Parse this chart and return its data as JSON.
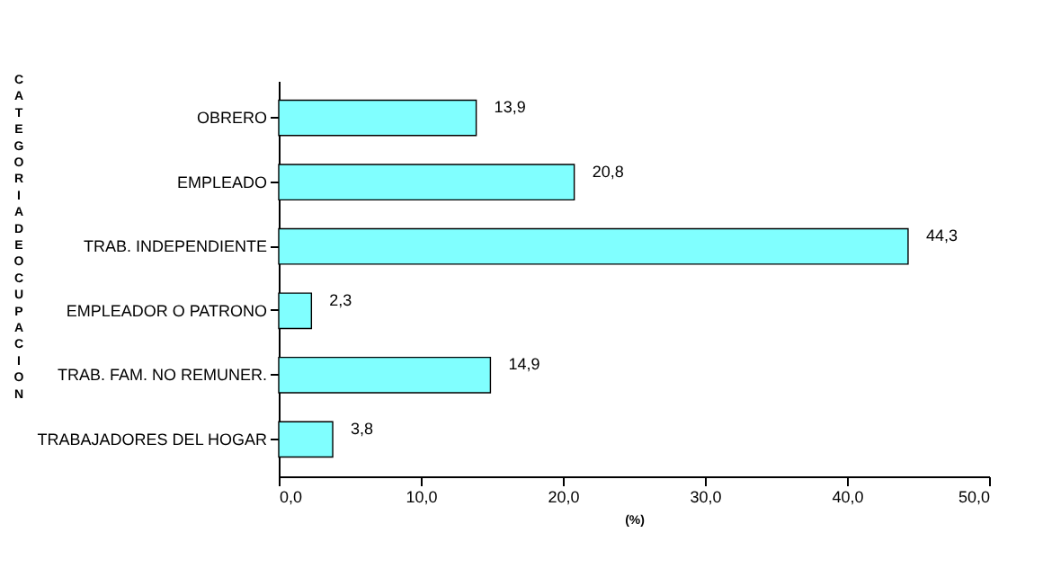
{
  "chart_data": {
    "type": "bar",
    "orientation": "horizontal",
    "xlabel": "(%)",
    "ylabel": "CATEGORIA DE OCUPACION",
    "categories": [
      "OBRERO",
      "EMPLEADO",
      "TRAB. INDEPENDIENTE",
      "EMPLEADOR O PATRONO",
      "TRAB. FAM. NO REMUNER.",
      "TRABAJADORES DEL HOGAR"
    ],
    "values": [
      13.9,
      20.8,
      44.3,
      2.3,
      14.9,
      3.8
    ],
    "color": "#80ffff",
    "xlim": [
      0,
      50
    ],
    "xticks": [
      {
        "value": 0,
        "label": "0,0"
      },
      {
        "value": 10,
        "label": "10,0"
      },
      {
        "value": 20,
        "label": "20,0"
      },
      {
        "value": 30,
        "label": "30,0"
      },
      {
        "value": 40,
        "label": "40,0"
      },
      {
        "value": 50,
        "label": "50,0"
      }
    ],
    "value_labels": [
      "13,9",
      "20,8",
      "44,3",
      "2,3",
      "14,9",
      "3,8"
    ],
    "grid": false
  }
}
